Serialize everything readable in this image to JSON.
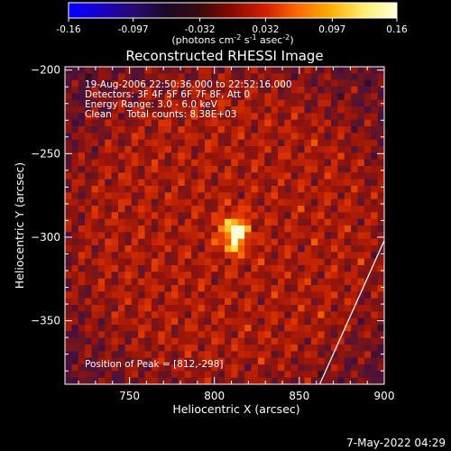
{
  "colorbar": {
    "tick_labels": [
      "-0.16",
      "-0.097",
      "-0.032",
      "0.032",
      "0.097",
      "0.16"
    ],
    "tick_values": [
      -0.16,
      -0.097,
      -0.032,
      0.032,
      0.097,
      0.16
    ],
    "range": [
      -0.16,
      0.16
    ],
    "units_prefix": "(photons cm",
    "units_exp1": "-2",
    "units_mid": " s",
    "units_exp2": "-1",
    "units_mid2": " asec",
    "units_exp3": "-2",
    "units_suffix": ")",
    "colors": [
      "#0000ff",
      "#1a00c8",
      "#2a0a6e",
      "#1a0a28",
      "#3a0a0a",
      "#8a0a00",
      "#d22000",
      "#ff6a00",
      "#ffb000",
      "#ffee70",
      "#ffffd8"
    ]
  },
  "chart_data": {
    "type": "heatmap",
    "title": "Reconstructed RHESSI Image",
    "xlabel": "Heliocentric X (arcsec)",
    "ylabel": "Heliocentric Y (arcsec)",
    "xlim": [
      712,
      900
    ],
    "ylim": [
      -388,
      -198
    ],
    "x_ticks": [
      750,
      800,
      850,
      900
    ],
    "y_ticks": [
      -200,
      -250,
      -300,
      -350
    ],
    "x_tick_labels": [
      "750",
      "800",
      "850",
      "900"
    ],
    "y_tick_labels": [
      "−200",
      "−250",
      "−300",
      "−350"
    ],
    "peak": [
      812,
      -298
    ],
    "limb_line": [
      [
        862,
        -388
      ],
      [
        900,
        -302
      ]
    ],
    "info_lines": [
      "19-Aug-2006 22:50:36.000 to 22:52:16.000",
      "Detectors: 3F 4F 5F 6F 7F 8F, Att 0",
      "Energy Range: 3.0 - 6.0 keV",
      "Clean     Total counts: 8.38E+03"
    ],
    "peak_label": "Position of Peak = [812,-298]"
  },
  "footer": {
    "date": "7-May-2022 04:29"
  }
}
